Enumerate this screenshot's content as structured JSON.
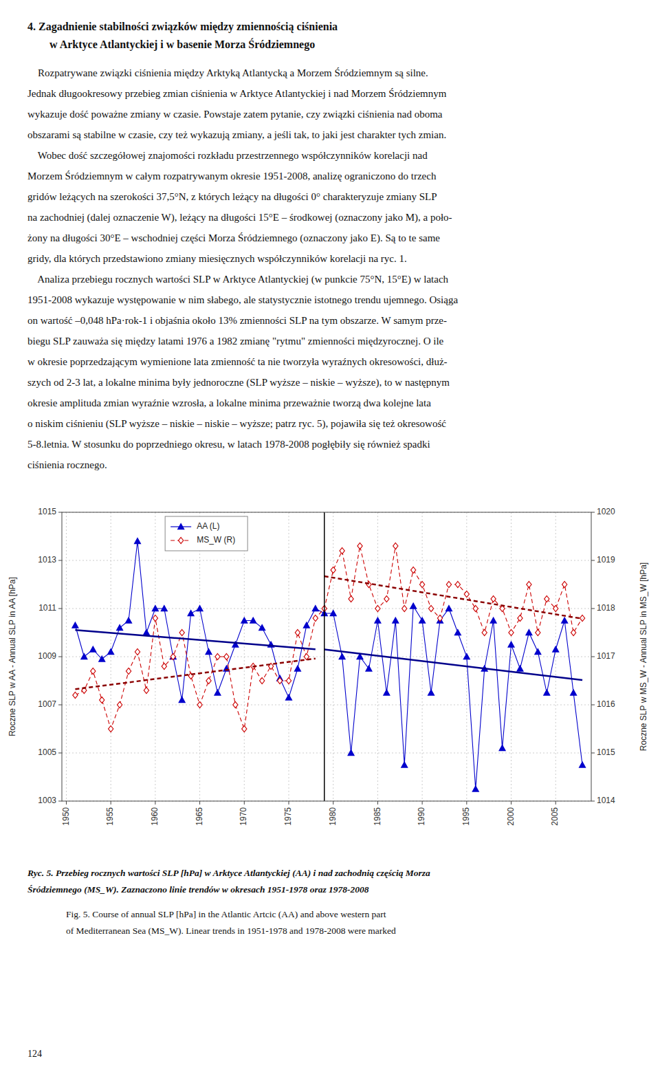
{
  "heading": [
    "4. Zagadnienie stabilności związków między zmiennością ciśnienia",
    "w Arktyce Atlantyckiej i w basenie Morza Śródziemnego"
  ],
  "body": [
    "    Rozpatrywane związki ciśnienia między Arktyką Atlantycką a Morzem Śródziemnym są silne.",
    "Jednak długookresowy przebieg zmian ciśnienia w Arktyce Atlantyckiej i nad Morzem Śródziemnym",
    "wykazuje dość poważne zmiany w czasie. Powstaje zatem pytanie, czy związki ciśnienia nad oboma",
    "obszarami są stabilne w czasie, czy też wykazują zmiany, a jeśli tak, to jaki jest charakter tych zmian.",
    "    Wobec dość szczegółowej znajomości rozkładu przestrzennego współczynników korelacji nad",
    "Morzem Śródziemnym w całym rozpatrywanym okresie 1951-2008, analizę ograniczono do trzech",
    "gridów leżących na szerokości 37,5°N, z których leżący na długości 0° charakteryzuje zmiany SLP",
    "na zachodniej (dalej oznaczenie W), leżący na długości 15°E – środkowej (oznaczony jako M), a poło-",
    "żony na długości 30°E – wschodniej części Morza Śródziemnego (oznaczony jako E). Są to te same",
    "gridy, dla których przedstawiono zmiany miesięcznych współczynników korelacji na ryc. 1.",
    "    Analiza przebiegu rocznych wartości SLP w Arktyce Atlantyckiej (w punkcie 75°N, 15°E) w latach",
    "1951-2008 wykazuje występowanie w nim słabego, ale statystycznie istotnego trendu ujemnego. Osiąga",
    "on wartość –0,048 hPa·rok-1 i objaśnia około 13% zmienności SLP na tym obszarze. W samym prze-",
    "biegu SLP zauważa się między latami 1976 a 1982 zmianę \"rytmu\" zmienności międzyrocznej. O ile",
    "w okresie poprzedzającym wymienione lata zmienność ta nie tworzyła wyraźnych okresowości, dłuż-",
    "szych od 2-3 lat, a lokalne minima były jednoroczne (SLP wyższe – niskie – wyższe), to w następnym",
    "okresie amplituda zmian wyraźnie wzrosła, a lokalne minima przeważnie tworzą dwa kolejne lata",
    "o niskim ciśnieniu (SLP wyższe – niskie – niskie – wyższe; patrz ryc. 5), pojawiła się też okresowość",
    "5-8.letnia. W stosunku do poprzedniego okresu, w latach 1978-2008 pogłębiły się również spadki",
    "ciśnienia rocznego."
  ],
  "caption": [
    "Ryc. 5. Przebieg rocznych wartości SLP [hPa] w Arktyce Atlantyckiej (AA) i nad zachodnią częścią Morza",
    "Śródziemnego (MS_W). Zaznaczono linie trendów w okresach 1951-1978 oraz 1978-2008",
    "Fig. 5. Course of annual SLP [hPa] in the Atlantic Artcic (AA) and above western part",
    "of Mediterranean Sea (MS_W). Linear trends in 1951-1978 and 1978-2008 were marked"
  ],
  "page_number": "124",
  "chart_data": {
    "type": "line",
    "ylabel": "Roczne SLP w AA - Annual SLP in AA [hPa]",
    "y2label": "Roczne SLP w MS_W - Annual SLP in MS_W [hPa]",
    "x": [
      1951,
      1952,
      1953,
      1954,
      1955,
      1956,
      1957,
      1958,
      1959,
      1960,
      1961,
      1962,
      1963,
      1964,
      1965,
      1966,
      1967,
      1968,
      1969,
      1970,
      1971,
      1972,
      1973,
      1974,
      1975,
      1976,
      1977,
      1978,
      1979,
      1980,
      1981,
      1982,
      1983,
      1984,
      1985,
      1986,
      1987,
      1988,
      1989,
      1990,
      1991,
      1992,
      1993,
      1994,
      1995,
      1996,
      1997,
      1998,
      1999,
      2000,
      2001,
      2002,
      2003,
      2004,
      2005,
      2006,
      2007,
      2008
    ],
    "series": [
      {
        "name": "AA (L)",
        "color": "#0000CC",
        "marker": "triangle",
        "line_style": "solid",
        "values": [
          1010.3,
          1009.0,
          1009.3,
          1008.9,
          1009.2,
          1010.2,
          1010.5,
          1013.8,
          1010.0,
          1011.0,
          1011.0,
          1009.0,
          1007.2,
          1010.8,
          1011.0,
          1009.2,
          1007.5,
          1008.5,
          1009.5,
          1010.5,
          1010.5,
          1010.2,
          1009.5,
          1008.1,
          1007.3,
          1008.5,
          1010.3,
          1011.0,
          1010.8,
          1010.8,
          1009.0,
          1005.0,
          1009.0,
          1008.5,
          1010.5,
          1007.5,
          1010.5,
          1004.5,
          1011.1,
          1010.5,
          1007.5,
          1010.5,
          1011.0,
          1010.0,
          1009.0,
          1003.5,
          1008.5,
          1010.5,
          1005.2,
          1009.5,
          1008.5,
          1010.0,
          1009.2,
          1007.5,
          1009.3,
          1010.5,
          1007.5,
          1004.5
        ]
      },
      {
        "name": "MS_W (R)",
        "color": "#CC0000",
        "marker": "open_diamond",
        "line_style": "dashed",
        "axis": "y2",
        "values": [
          1016.2,
          1016.3,
          1016.7,
          1016.1,
          1015.5,
          1016.0,
          1016.7,
          1017.1,
          1016.3,
          1017.8,
          1016.8,
          1017.0,
          1017.5,
          1016.6,
          1016.0,
          1016.5,
          1017.0,
          1017.0,
          1016.0,
          1015.5,
          1016.8,
          1016.5,
          1016.8,
          1016.5,
          1016.5,
          1017.5,
          1017.0,
          1017.8,
          1018.0,
          1018.8,
          1019.2,
          1018.2,
          1019.3,
          1018.5,
          1018.0,
          1018.2,
          1019.3,
          1018.0,
          1018.8,
          1018.5,
          1018.0,
          1017.8,
          1018.5,
          1018.5,
          1018.3,
          1018.0,
          1017.5,
          1018.2,
          1018.0,
          1017.5,
          1017.8,
          1018.5,
          1017.5,
          1018.2,
          1018.0,
          1018.5,
          1017.5,
          1017.8
        ]
      },
      {
        "color": "#00008B",
        "line_style": "solid",
        "x": [
          1951,
          1978
        ],
        "values": [
          1010.1047,
          1009.3096
        ]
      },
      {
        "color": "#8B0000",
        "line_style": "dashed",
        "axis": "y2",
        "x": [
          1951,
          1978
        ],
        "values": [
          1016.3251,
          1016.9606
        ]
      },
      {
        "color": "#00008B",
        "line_style": "solid",
        "x": [
          1979,
          2008
        ],
        "values": [
          1009.2998,
          1008.0269
        ]
      },
      {
        "color": "#8B0000",
        "line_style": "dashed",
        "axis": "y2",
        "x": [
          1979,
          2008
        ],
        "values": [
          1018.6716,
          1017.7884
        ]
      }
    ],
    "vlines": [
      1979
    ],
    "xlim": [
      1949.5,
      2009
    ],
    "xticks": [
      1950,
      1955,
      1960,
      1965,
      1970,
      1975,
      1980,
      1985,
      1990,
      1995,
      2000,
      2005
    ],
    "ylim": [
      1003,
      1015
    ],
    "yticks": [
      1003,
      1005,
      1007,
      1009,
      1011,
      1013,
      1015
    ],
    "y2lim": [
      1014,
      1020
    ],
    "y2ticks": [
      1014,
      1015,
      1016,
      1017,
      1018,
      1019,
      1020
    ],
    "grid": true,
    "legend": "upper left"
  }
}
